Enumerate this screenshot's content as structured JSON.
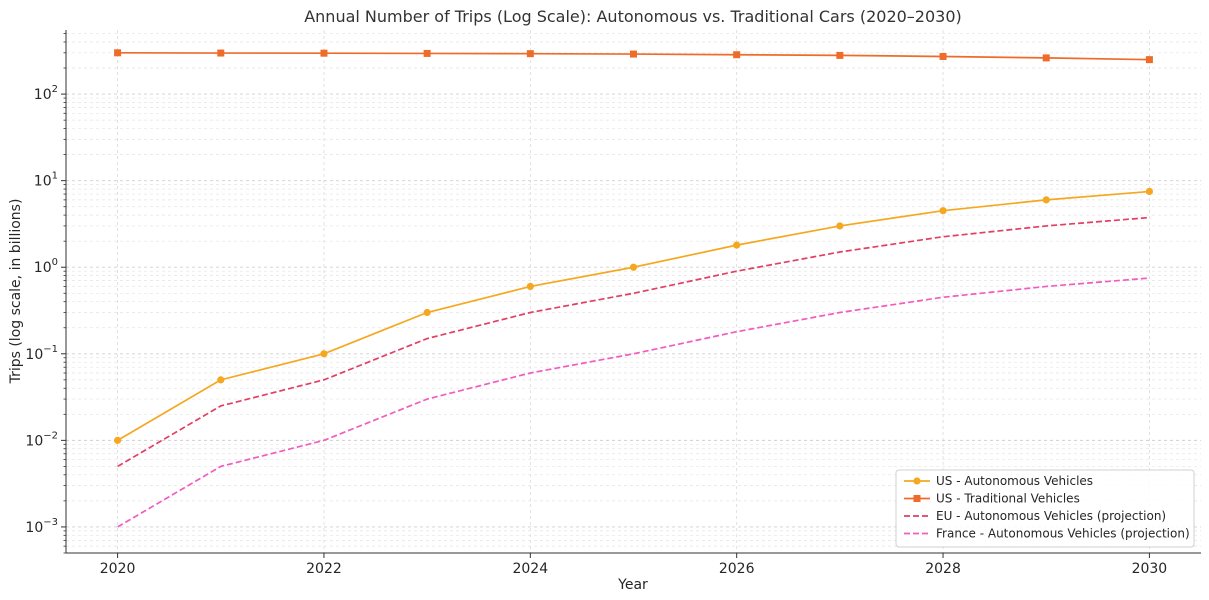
{
  "chart_data": {
    "type": "line",
    "title": "Annual Number of Trips (Log Scale): Autonomous vs. Traditional Cars (2020–2030)",
    "xlabel": "Year",
    "ylabel": "Trips (log scale, in billions)",
    "x": [
      2020,
      2021,
      2022,
      2023,
      2024,
      2025,
      2026,
      2027,
      2028,
      2029,
      2030
    ],
    "xlim": [
      2019.5,
      2030.5
    ],
    "x_ticks": [
      2020,
      2022,
      2024,
      2026,
      2028,
      2030
    ],
    "yscale": "log",
    "ylim": [
      0.0005,
      550
    ],
    "y_ticks": [
      {
        "value": 0.001,
        "base": "10",
        "exp": "−3"
      },
      {
        "value": 0.01,
        "base": "10",
        "exp": "−2"
      },
      {
        "value": 0.1,
        "base": "10",
        "exp": "−1"
      },
      {
        "value": 1,
        "base": "10",
        "exp": "0"
      },
      {
        "value": 10,
        "base": "10",
        "exp": "1"
      },
      {
        "value": 100,
        "base": "10",
        "exp": "2"
      }
    ],
    "grid": true,
    "legend_position": "bottom-right",
    "series": [
      {
        "name": "US - Autonomous Vehicles",
        "color": "#f5a81f",
        "dash": "solid",
        "marker": "circle",
        "values": [
          0.01,
          0.05,
          0.1,
          0.3,
          0.6,
          1.0,
          1.8,
          3.0,
          4.5,
          6.0,
          7.5
        ]
      },
      {
        "name": "US - Traditional Vehicles",
        "color": "#ef6b2a",
        "dash": "solid",
        "marker": "square",
        "values": [
          300,
          298,
          297,
          295,
          293,
          290,
          285,
          280,
          272,
          262,
          250
        ]
      },
      {
        "name": "EU - Autonomous Vehicles (projection)",
        "color": "#e23f62",
        "dash": "dashed",
        "marker": "none",
        "values": [
          0.005,
          0.025,
          0.05,
          0.15,
          0.3,
          0.5,
          0.9,
          1.5,
          2.25,
          3.0,
          3.75
        ]
      },
      {
        "name": "France - Autonomous Vehicles (projection)",
        "color": "#f35bbf",
        "dash": "dashed",
        "marker": "none",
        "values": [
          0.001,
          0.005,
          0.01,
          0.03,
          0.06,
          0.1,
          0.18,
          0.3,
          0.45,
          0.6,
          0.75
        ]
      }
    ]
  }
}
